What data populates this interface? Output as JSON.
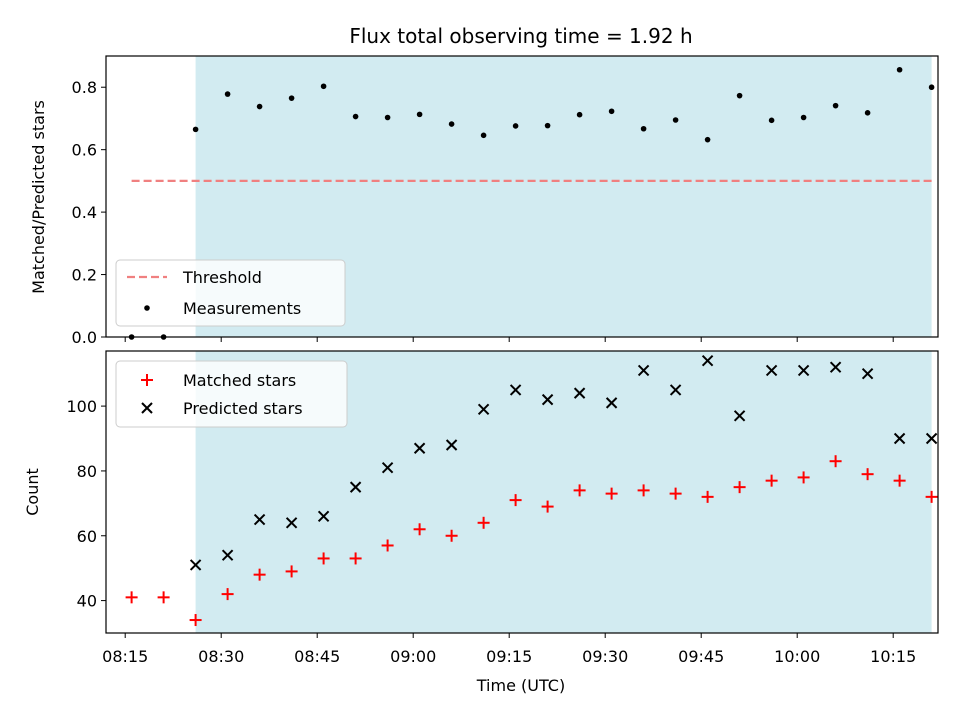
{
  "chart_data": [
    {
      "type": "scatter",
      "title": "Flux total observing time = 1.92 h",
      "xlabel": "",
      "ylabel": "Matched/Predicted stars",
      "ylim": [
        0,
        0.9
      ],
      "yticks": [
        "0.0",
        "0.2",
        "0.4",
        "0.6",
        "0.8"
      ],
      "x_unit": "minutes after 08:00 UTC",
      "shaded_region": {
        "x_start": "08:26",
        "x_end": "10:21",
        "color": "#d2ebf1"
      },
      "threshold": {
        "name": "Threshold",
        "value": 0.5,
        "x_start": "08:16",
        "x_end": "10:21",
        "color": "#f08080"
      },
      "legend": {
        "placement": "lower-left",
        "entries": [
          "Threshold",
          "Measurements"
        ]
      },
      "series": [
        {
          "name": "Measurements",
          "marker": "dot",
          "color": "#000000",
          "x": [
            "08:16",
            "08:21",
            "08:26",
            "08:31",
            "08:36",
            "08:41",
            "08:46",
            "08:51",
            "08:56",
            "09:01",
            "09:06",
            "09:11",
            "09:16",
            "09:21",
            "09:26",
            "09:31",
            "09:36",
            "09:41",
            "09:46",
            "09:51",
            "09:56",
            "10:01",
            "10:06",
            "10:11",
            "10:16",
            "10:21"
          ],
          "y": [
            0.0,
            0.0,
            0.665,
            0.778,
            0.738,
            0.765,
            0.803,
            0.706,
            0.703,
            0.713,
            0.682,
            0.646,
            0.676,
            0.677,
            0.712,
            0.723,
            0.667,
            0.695,
            0.632,
            0.773,
            0.694,
            0.703,
            0.741,
            0.718,
            0.856,
            0.8
          ]
        }
      ]
    },
    {
      "type": "scatter",
      "title": "",
      "xlabel": "Time (UTC)",
      "ylabel": "Count",
      "ylim": [
        30,
        117
      ],
      "yticks": [
        "40",
        "60",
        "80",
        "100"
      ],
      "xticks": [
        "08:15",
        "08:30",
        "08:45",
        "09:00",
        "09:15",
        "09:30",
        "09:45",
        "10:00",
        "10:15"
      ],
      "shaded_region": {
        "x_start": "08:26",
        "x_end": "10:21",
        "color": "#d2ebf1"
      },
      "legend": {
        "placement": "top-left",
        "entries": [
          "Matched stars",
          "Predicted stars"
        ]
      },
      "series": [
        {
          "name": "Matched stars",
          "marker": "plus",
          "color": "#ff0000",
          "x": [
            "08:16",
            "08:21",
            "08:26",
            "08:31",
            "08:36",
            "08:41",
            "08:46",
            "08:51",
            "08:56",
            "09:01",
            "09:06",
            "09:11",
            "09:16",
            "09:21",
            "09:26",
            "09:31",
            "09:36",
            "09:41",
            "09:46",
            "09:51",
            "09:56",
            "10:01",
            "10:06",
            "10:11",
            "10:16",
            "10:21"
          ],
          "y": [
            41,
            41,
            34,
            42,
            48,
            49,
            53,
            53,
            57,
            62,
            60,
            64,
            71,
            69,
            74,
            73,
            74,
            73,
            72,
            75,
            77,
            78,
            83,
            79,
            77,
            72
          ]
        },
        {
          "name": "Predicted stars",
          "marker": "x",
          "color": "#000000",
          "x": [
            "08:26",
            "08:31",
            "08:36",
            "08:41",
            "08:46",
            "08:51",
            "08:56",
            "09:01",
            "09:06",
            "09:11",
            "09:16",
            "09:21",
            "09:26",
            "09:31",
            "09:36",
            "09:41",
            "09:46",
            "09:51",
            "09:56",
            "10:01",
            "10:06",
            "10:11",
            "10:16",
            "10:21"
          ],
          "y": [
            51,
            54,
            65,
            64,
            66,
            75,
            81,
            87,
            88,
            99,
            105,
            102,
            104,
            101,
            111,
            105,
            114,
            97,
            111,
            111,
            112,
            110,
            90,
            90
          ]
        }
      ]
    }
  ]
}
